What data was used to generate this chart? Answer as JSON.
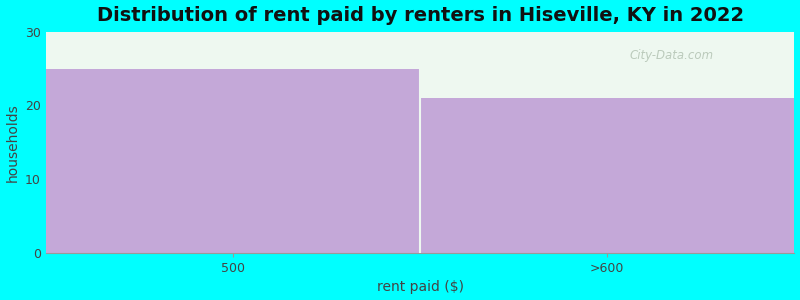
{
  "categories": [
    "500",
    ">600"
  ],
  "values": [
    25,
    21
  ],
  "bar_color": "#c4a8d8",
  "background_color": "#00ffff",
  "plot_bg_color": "#eef8f0",
  "title": "Distribution of rent paid by renters in Hiseville, KY in 2022",
  "xlabel": "rent paid ($)",
  "ylabel": "households",
  "ylim": [
    0,
    30
  ],
  "yticks": [
    0,
    10,
    20,
    30
  ],
  "title_fontsize": 14,
  "axis_label_fontsize": 10,
  "tick_fontsize": 9,
  "watermark": "City-Data.com"
}
